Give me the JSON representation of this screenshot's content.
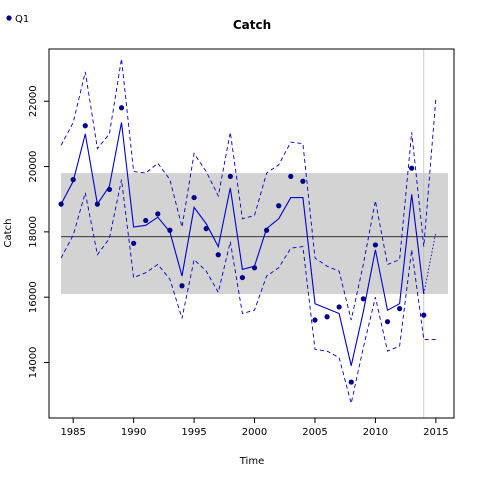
{
  "chart_data": {
    "type": "line",
    "title": "Catch",
    "xlabel": "Time",
    "ylabel": "Catch",
    "xlim": [
      1983,
      2016.5
    ],
    "ylim": [
      12300,
      23600
    ],
    "xticks": [
      "1985",
      "1990",
      "1995",
      "2000",
      "2005",
      "2010",
      "2015"
    ],
    "yticks": [
      "14000",
      "16000",
      "18000",
      "20000",
      "22000"
    ],
    "legend": {
      "position": "top-left",
      "entries": [
        "Q1"
      ]
    },
    "grid": false,
    "band": {
      "ymin": 16100,
      "ymax": 19800,
      "xmin": 1984,
      "xmax": 2016,
      "color": "#d3d3d3"
    },
    "hline": 17850,
    "vline": 2014,
    "colors": {
      "series": "#0000cd",
      "points": "#00008b",
      "band": "#d3d3d3",
      "vline": "#c0c0c0"
    },
    "series": [
      {
        "name": "Q1",
        "role": "observed",
        "x": [
          1984,
          1985,
          1986,
          1987,
          1988,
          1989,
          1990,
          1991,
          1992,
          1993,
          1994,
          1995,
          1996,
          1997,
          1998,
          1999,
          2000,
          2001,
          2002,
          2003,
          2004,
          2005,
          2006,
          2007,
          2008,
          2009,
          2010,
          2011,
          2012,
          2013,
          2014
        ],
        "y": [
          18850,
          19600,
          21250,
          18850,
          19300,
          21800,
          17650,
          18350,
          18550,
          18050,
          16350,
          19050,
          18100,
          17300,
          19700,
          16600,
          16900,
          18050,
          18800,
          19700,
          19550,
          15300,
          15400,
          15700,
          13400,
          15950,
          17600,
          15250,
          15650,
          19950,
          15450
        ]
      },
      {
        "name": "",
        "role": "fitted",
        "x": [
          1984,
          1985,
          1986,
          1987,
          1988,
          1989,
          1990,
          1991,
          1992,
          1993,
          1994,
          1995,
          1996,
          1997,
          1998,
          1999,
          2000,
          2001,
          2002,
          2003,
          2004,
          2005,
          2006,
          2007,
          2008,
          2009,
          2010,
          2011,
          2012,
          2013,
          2014
        ],
        "y": [
          18850,
          19550,
          21000,
          18850,
          19400,
          21350,
          18150,
          18200,
          18450,
          18000,
          16650,
          18750,
          18250,
          17550,
          19350,
          16850,
          16950,
          18100,
          18400,
          19050,
          19050,
          15800,
          15650,
          15500,
          13900,
          15550,
          17450,
          15600,
          15800,
          19150,
          16100
        ]
      },
      {
        "name": "",
        "role": "upper",
        "x": [
          1984,
          1985,
          1986,
          1987,
          1988,
          1989,
          1990,
          1991,
          1992,
          1993,
          1994,
          1995,
          1996,
          1997,
          1998,
          1999,
          2000,
          2001,
          2002,
          2003,
          2004,
          2005,
          2006,
          2007,
          2008,
          2009,
          2010,
          2011,
          2012,
          2013,
          2014,
          2015
        ],
        "y": [
          20650,
          21350,
          22900,
          20550,
          21000,
          23300,
          19850,
          19800,
          20100,
          19600,
          18150,
          20400,
          19850,
          19100,
          21050,
          18400,
          18500,
          19800,
          20050,
          20750,
          20700,
          17200,
          16950,
          16800,
          15300,
          17000,
          18950,
          17000,
          17150,
          21050,
          17550,
          22100
        ]
      },
      {
        "name": "",
        "role": "lower",
        "x": [
          1984,
          1985,
          1986,
          1987,
          1988,
          1989,
          1990,
          1991,
          1992,
          1993,
          1994,
          1995,
          1996,
          1997,
          1998,
          1999,
          2000,
          2001,
          2002,
          2003,
          2004,
          2005,
          2006,
          2007,
          2008,
          2009,
          2010,
          2011,
          2012,
          2013,
          2014,
          2015
        ],
        "y": [
          17200,
          17900,
          19200,
          17300,
          17800,
          19600,
          16600,
          16750,
          17000,
          16550,
          15350,
          17150,
          16800,
          16150,
          17700,
          15500,
          15600,
          16650,
          16900,
          17500,
          17550,
          14400,
          14350,
          14150,
          12750,
          14450,
          16000,
          14350,
          14500,
          17450,
          14700,
          14700
        ]
      },
      {
        "name": "",
        "role": "projection",
        "x": [
          2014,
          2015
        ],
        "y": [
          16100,
          18000
        ]
      }
    ]
  }
}
